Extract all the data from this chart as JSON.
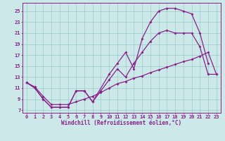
{
  "background_color": "#cce8e8",
  "grid_color": "#99cccc",
  "line_color": "#882288",
  "marker": "D",
  "marker_size": 2.0,
  "line_width": 0.9,
  "xlabel": "Windchill (Refroidissement éolien,°C)",
  "xlabel_fontsize": 5.5,
  "tick_fontsize": 5.0,
  "xlim": [
    -0.5,
    23.5
  ],
  "ylim": [
    6.5,
    26.5
  ],
  "yticks": [
    7,
    9,
    11,
    13,
    15,
    17,
    19,
    21,
    23,
    25
  ],
  "xticks": [
    0,
    1,
    2,
    3,
    4,
    5,
    6,
    7,
    8,
    9,
    10,
    11,
    12,
    13,
    14,
    15,
    16,
    17,
    18,
    19,
    20,
    21,
    22,
    23
  ],
  "curve_straight_x": [
    0,
    1,
    2,
    3,
    4,
    5,
    6,
    7,
    8,
    9,
    10,
    11,
    12,
    13,
    14,
    15,
    16,
    17,
    18,
    19,
    20,
    21,
    22,
    23
  ],
  "curve_straight_y": [
    12.0,
    11.2,
    9.5,
    8.0,
    8.0,
    8.0,
    8.5,
    9.0,
    9.5,
    10.2,
    11.0,
    11.8,
    12.2,
    12.8,
    13.2,
    13.8,
    14.3,
    14.8,
    15.3,
    15.8,
    16.2,
    16.8,
    17.5,
    13.5
  ],
  "curve_upper_x": [
    0,
    1,
    2,
    3,
    4,
    5,
    6,
    7,
    8,
    10,
    11,
    12,
    13,
    14,
    15,
    16,
    17,
    18,
    19,
    20,
    21,
    22
  ],
  "curve_upper_y": [
    12.0,
    11.0,
    9.0,
    7.5,
    7.5,
    7.5,
    10.5,
    10.5,
    8.5,
    13.5,
    15.5,
    17.5,
    14.5,
    20.0,
    23.0,
    25.0,
    25.5,
    25.5,
    25.0,
    24.5,
    21.0,
    15.5
  ],
  "curve_mid_x": [
    0,
    1,
    2,
    3,
    4,
    5,
    6,
    7,
    8,
    9,
    10,
    11,
    12,
    13,
    14,
    15,
    16,
    17,
    18,
    19,
    20,
    21,
    22,
    23
  ],
  "curve_mid_y": [
    12.0,
    11.0,
    9.0,
    7.5,
    7.5,
    7.5,
    10.5,
    10.5,
    8.5,
    10.5,
    12.5,
    14.5,
    13.0,
    15.5,
    17.5,
    19.5,
    21.0,
    21.5,
    21.0,
    21.0,
    21.0,
    18.5,
    13.5,
    13.5
  ]
}
